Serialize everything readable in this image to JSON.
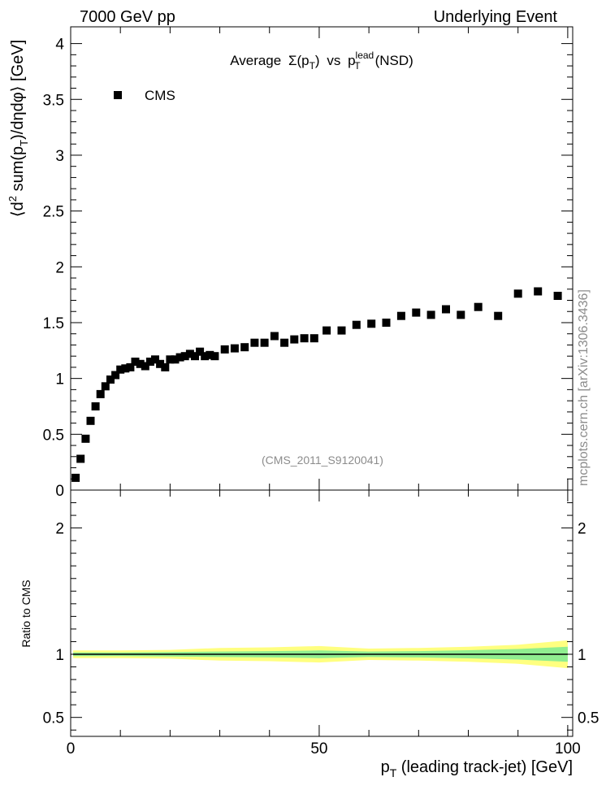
{
  "header": {
    "left_label": "7000 GeV pp",
    "right_label": "Underlying Event"
  },
  "plot_title": {
    "prefix": "Average",
    "sigma": "Σ(p",
    "sigma_sub": "T",
    "sigma_close": ")",
    "vs": "vs",
    "p": "p",
    "p_sub": "T",
    "p_sup": "lead",
    "suffix": "(NSD)"
  },
  "ylabel": {
    "part1": "⟨d",
    "sup": "2",
    "part2": " sum(p",
    "sub": "T",
    "part3": ")/dηdφ⟩ [GeV]"
  },
  "ratio_ylabel": "Ratio to CMS",
  "xlabel": {
    "p": "p",
    "sub": "T",
    "rest": " (leading track-jet) [GeV]"
  },
  "legend": {
    "entry": "CMS"
  },
  "analysis_id": "(CMS_2011_S9120041)",
  "side_credit": "mcplots.cern.ch [arXiv:1306.3436]",
  "chart_data": {
    "type": "scatter",
    "xlim": [
      0,
      101
    ],
    "ylim": [
      0,
      4.15
    ],
    "ratio_ylim": [
      0.35,
      2.3
    ],
    "xticks": [
      0,
      50,
      100
    ],
    "xtick_labels": [
      "0",
      "50",
      "100"
    ],
    "yticks": [
      0,
      0.5,
      1,
      1.5,
      2,
      2.5,
      3,
      3.5,
      4
    ],
    "ytick_labels": [
      "0",
      "0.5",
      "1",
      "1.5",
      "2",
      "2.5",
      "3",
      "3.5",
      "4"
    ],
    "ratio_yticks": [
      0.5,
      1,
      2
    ],
    "ratio_ytick_labels": [
      "0.5",
      "1",
      "2"
    ],
    "series": [
      {
        "name": "CMS",
        "x": [
          1,
          2,
          3,
          4,
          5,
          6,
          7,
          8,
          9,
          10,
          11,
          12,
          13,
          14,
          15,
          16,
          17,
          18,
          19,
          20,
          21,
          22,
          23,
          24,
          25,
          26,
          27,
          28,
          29,
          31,
          33,
          35,
          37,
          39,
          41,
          43,
          45,
          47,
          49,
          51.5,
          54.5,
          57.5,
          60.5,
          63.5,
          66.5,
          69.5,
          72.5,
          75.5,
          78.5,
          82,
          86,
          90,
          94,
          98
        ],
        "y": [
          0.11,
          0.28,
          0.46,
          0.62,
          0.75,
          0.86,
          0.93,
          0.99,
          1.03,
          1.08,
          1.09,
          1.1,
          1.15,
          1.13,
          1.11,
          1.15,
          1.17,
          1.13,
          1.1,
          1.17,
          1.17,
          1.19,
          1.2,
          1.22,
          1.2,
          1.24,
          1.2,
          1.21,
          1.2,
          1.26,
          1.27,
          1.28,
          1.32,
          1.32,
          1.38,
          1.32,
          1.35,
          1.36,
          1.36,
          1.43,
          1.43,
          1.48,
          1.49,
          1.5,
          1.56,
          1.59,
          1.57,
          1.62,
          1.57,
          1.64,
          1.56,
          1.76,
          1.78,
          1.74
        ]
      }
    ],
    "ratio_band": {
      "x_edges": [
        0.5,
        10,
        20,
        30,
        40,
        50,
        60,
        70,
        80,
        90,
        100
      ],
      "inner_halfwidth": [
        0.015,
        0.015,
        0.018,
        0.022,
        0.025,
        0.03,
        0.022,
        0.025,
        0.032,
        0.042,
        0.06
      ],
      "outer_halfwidth": [
        0.03,
        0.03,
        0.035,
        0.05,
        0.055,
        0.065,
        0.045,
        0.05,
        0.06,
        0.075,
        0.11
      ]
    },
    "colors": {
      "marker": "#000000",
      "band_inner": "#90ee90",
      "band_outer": "#ffff80",
      "reference_line": "#000000"
    }
  }
}
